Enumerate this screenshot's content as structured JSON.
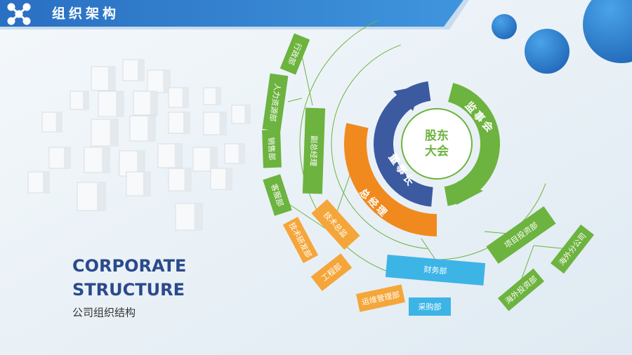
{
  "header": {
    "title": "组织架构"
  },
  "caption": {
    "line1": "CORPORATE",
    "line2": "STRUCTURE",
    "subtitle": "公司组织结构"
  },
  "core": {
    "center_lines": [
      "股东",
      "大会"
    ],
    "supervisors": "监事会",
    "chairman": "董事长",
    "general_manager": "总经理"
  },
  "nodes": [
    "副总经理",
    "行政部",
    "人力资源部",
    "销售部",
    "客服部",
    "技术总监",
    "技术研发部",
    "工程部",
    "运维管理部",
    "财务部",
    "采购部",
    "项目投资部",
    "海外投资部",
    "海外分公司"
  ]
}
